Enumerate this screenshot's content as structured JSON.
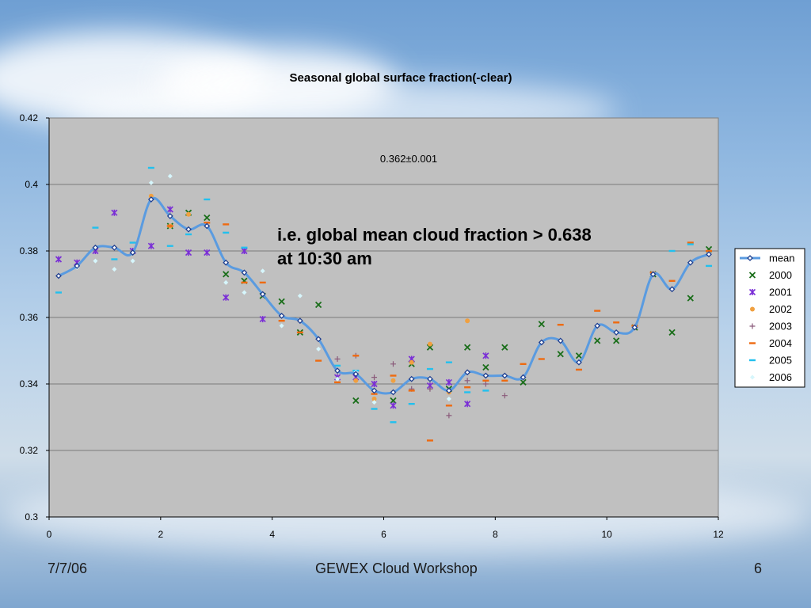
{
  "slide": {
    "date": "7/7/06",
    "event": "GEWEX Cloud Workshop",
    "page_number": "6"
  },
  "annotations": {
    "value_text": "0.362±0.001",
    "callout_line1": "i.e. global mean cloud fraction > 0.638",
    "callout_line2": "at 10:30 am"
  },
  "chart_data": {
    "type": "scatter",
    "title": "Seasonal global surface fraction(-clear)",
    "xlabel": "",
    "ylabel": "",
    "xlim": [
      0,
      12
    ],
    "ylim": [
      0.3,
      0.42
    ],
    "x_ticks": [
      0,
      2,
      4,
      6,
      8,
      10,
      12
    ],
    "y_ticks": [
      0.3,
      0.32,
      0.34,
      0.36,
      0.38,
      0.4,
      0.42
    ],
    "grid": "horizontal",
    "legend_position": "right",
    "colors": {
      "plot_bg": "#c0c0c0",
      "mean": "#5a9be0",
      "mean_marker": "#1f3f8f",
      "2000": "#1a6e1a",
      "2001": "#7a2ed6",
      "2002": "#f0a040",
      "2003": "#8a5a7a",
      "2004": "#ee6a10",
      "2005": "#22c0ee",
      "2006": "#d6f6fc"
    },
    "series": [
      {
        "name": "mean",
        "style": "line-diamond",
        "x": [
          0.17,
          0.5,
          0.83,
          1.17,
          1.5,
          1.83,
          2.17,
          2.5,
          2.83,
          3.17,
          3.5,
          3.83,
          4.17,
          4.5,
          4.83,
          5.17,
          5.5,
          5.83,
          6.17,
          6.5,
          6.83,
          7.17,
          7.5,
          7.83,
          8.17,
          8.5,
          8.83,
          9.17,
          9.5,
          9.83,
          10.17,
          10.5,
          10.83,
          11.17,
          11.5,
          11.83
        ],
        "y": [
          0.3725,
          0.3755,
          0.381,
          0.381,
          0.3795,
          0.3955,
          0.3905,
          0.3865,
          0.3875,
          0.3765,
          0.3735,
          0.367,
          0.3605,
          0.359,
          0.3535,
          0.344,
          0.343,
          0.338,
          0.3375,
          0.3415,
          0.3415,
          0.338,
          0.3435,
          0.3425,
          0.3425,
          0.342,
          0.3525,
          0.353,
          0.3465,
          0.3575,
          0.3555,
          0.357,
          0.373,
          0.3685,
          0.3765,
          0.379
        ]
      },
      {
        "name": "2000",
        "style": "x",
        "x": [
          2.17,
          2.5,
          2.83,
          3.17,
          3.5,
          3.83,
          4.17,
          4.5,
          4.83,
          5.5,
          6.17,
          6.5,
          6.83,
          7.17,
          7.5,
          7.83,
          8.17,
          8.5,
          8.83,
          9.17,
          9.5,
          9.83,
          10.17,
          10.5,
          10.83,
          11.17,
          11.5,
          11.83
        ],
        "y": [
          0.3875,
          0.3915,
          0.39,
          0.373,
          0.371,
          0.3665,
          0.3648,
          0.3555,
          0.3638,
          0.335,
          0.335,
          0.346,
          0.351,
          0.3385,
          0.351,
          0.345,
          0.351,
          0.3405,
          0.358,
          0.349,
          0.3485,
          0.353,
          0.353,
          0.357,
          0.373,
          0.3555,
          0.3658,
          0.3805
        ]
      },
      {
        "name": "2001",
        "style": "asterisk",
        "x": [
          0.17,
          0.5,
          0.83,
          1.17,
          1.5,
          1.83,
          2.17,
          2.5,
          2.83,
          3.17,
          3.5,
          3.83,
          5.17,
          5.5,
          5.83,
          6.17,
          6.5,
          6.83,
          7.17,
          7.5,
          7.83
        ],
        "y": [
          0.3775,
          0.3765,
          0.38,
          0.3915,
          0.38,
          0.3815,
          0.3925,
          0.3795,
          0.3795,
          0.366,
          0.38,
          0.3595,
          0.342,
          0.342,
          0.34,
          0.3335,
          0.3475,
          0.3395,
          0.3405,
          0.334,
          0.3485
        ]
      },
      {
        "name": "2002",
        "style": "dot",
        "x": [
          1.83,
          2.17,
          2.5,
          5.5,
          5.83,
          6.17,
          6.5,
          6.83,
          7.17,
          7.5,
          7.83
        ],
        "y": [
          0.3965,
          0.3875,
          0.391,
          0.341,
          0.3355,
          0.341,
          0.3465,
          0.352,
          0.3375,
          0.359,
          0.3425
        ]
      },
      {
        "name": "2003",
        "style": "plus",
        "x": [
          5.17,
          5.5,
          5.83,
          6.17,
          6.5,
          6.83,
          7.17,
          7.5,
          7.83,
          8.17
        ],
        "y": [
          0.3475,
          0.3485,
          0.342,
          0.346,
          0.3385,
          0.3385,
          0.3305,
          0.341,
          0.34,
          0.3365
        ]
      },
      {
        "name": "2004",
        "style": "dash",
        "x": [
          2.17,
          2.83,
          3.17,
          3.5,
          3.83,
          4.17,
          4.5,
          4.83,
          5.17,
          5.5,
          5.83,
          6.17,
          6.5,
          6.83,
          7.17,
          7.5,
          7.83,
          8.17,
          8.5,
          8.83,
          9.17,
          9.5,
          9.83,
          10.17,
          10.5,
          10.83,
          11.17,
          11.5,
          11.83
        ],
        "y": [
          0.3875,
          0.3885,
          0.388,
          0.3705,
          0.3705,
          0.359,
          0.3555,
          0.347,
          0.3405,
          0.3485,
          0.337,
          0.3425,
          0.338,
          0.323,
          0.3335,
          0.339,
          0.341,
          0.341,
          0.346,
          0.3475,
          0.3578,
          0.3443,
          0.362,
          0.3585,
          0.3575,
          0.3735,
          0.371,
          0.3825,
          0.38
        ]
      },
      {
        "name": "2005",
        "style": "dash",
        "x": [
          0.17,
          0.83,
          1.17,
          1.5,
          1.83,
          2.17,
          2.5,
          2.83,
          3.17,
          3.5,
          5.17,
          5.5,
          5.83,
          6.17,
          6.5,
          6.83,
          7.17,
          7.5,
          7.83,
          11.17,
          11.5,
          11.83
        ],
        "y": [
          0.3675,
          0.387,
          0.3775,
          0.3825,
          0.405,
          0.3815,
          0.385,
          0.3955,
          0.3855,
          0.381,
          0.3455,
          0.344,
          0.3325,
          0.3285,
          0.334,
          0.3445,
          0.3465,
          0.3375,
          0.338,
          0.38,
          0.382,
          0.3755
        ]
      },
      {
        "name": "2006",
        "style": "diamond-small",
        "x": [
          0.17,
          0.5,
          0.83,
          1.17,
          1.5,
          1.83,
          2.17,
          2.83,
          3.17,
          3.5,
          3.83,
          4.17,
          4.5,
          4.83,
          5.17,
          5.5,
          5.83,
          7.17
        ],
        "y": [
          0.3725,
          0.375,
          0.377,
          0.3745,
          0.377,
          0.4005,
          0.4025,
          0.3875,
          0.3705,
          0.3675,
          0.374,
          0.3575,
          0.3665,
          0.3505,
          0.3415,
          0.3435,
          0.3345,
          0.3355
        ]
      }
    ]
  }
}
